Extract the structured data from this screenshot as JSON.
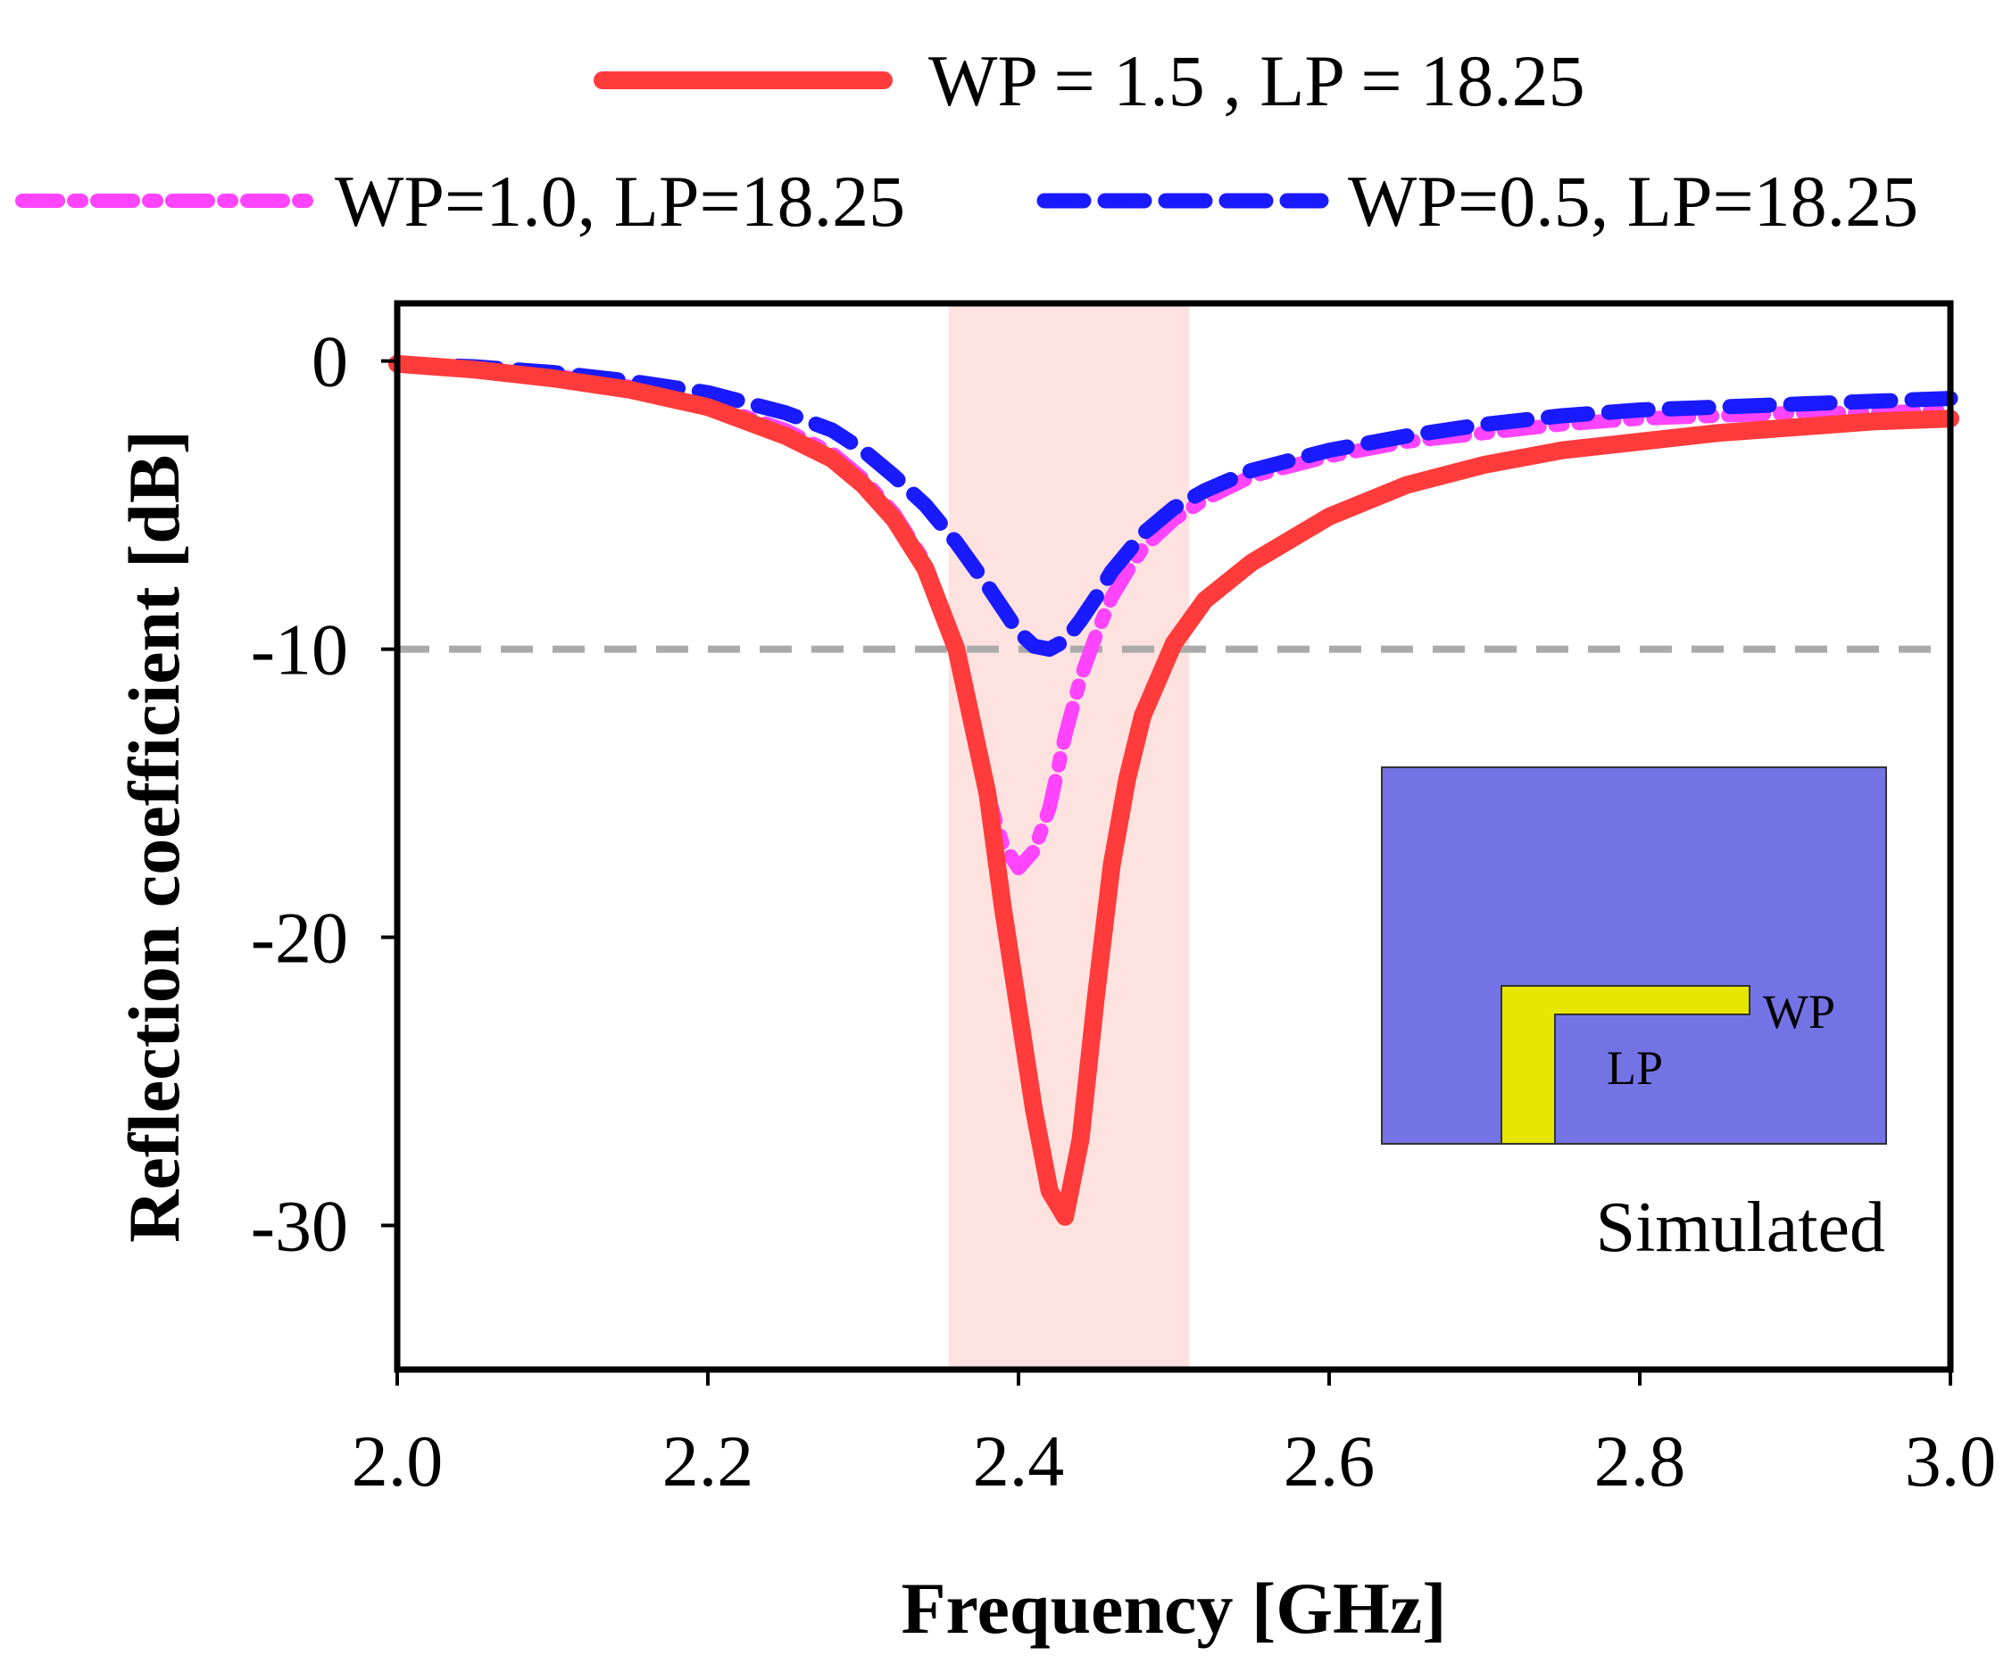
{
  "chart_data": {
    "type": "line",
    "title": "",
    "xlabel": "Frequency [GHz]",
    "ylabel": "Reflection coefficient [dB]",
    "xlim": [
      2.0,
      3.0
    ],
    "ylim": [
      -35,
      2
    ],
    "xticks": [
      2.0,
      2.2,
      2.4,
      2.6,
      2.8,
      3.0
    ],
    "xtick_labels": [
      "2.0",
      "2.2",
      "2.4",
      "2.6",
      "2.8",
      "3.0"
    ],
    "yticks": [
      0,
      -10,
      -20,
      -30
    ],
    "ytick_labels": [
      "0",
      "-10",
      "-20",
      "-30"
    ],
    "grid": false,
    "legend_position": "top",
    "shaded_band": {
      "x_start": 2.355,
      "x_end": 2.51,
      "color": "#fde2e0"
    },
    "reference_line": {
      "y": -10,
      "color": "#aaaaaa"
    },
    "series": [
      {
        "name": "WP = 1.5 , LP = 18.25",
        "color": "#ff3b3b",
        "style": "solid",
        "x": [
          2.0,
          2.05,
          2.1,
          2.15,
          2.2,
          2.25,
          2.28,
          2.3,
          2.32,
          2.34,
          2.36,
          2.38,
          2.39,
          2.4,
          2.41,
          2.42,
          2.43,
          2.44,
          2.45,
          2.46,
          2.47,
          2.48,
          2.5,
          2.52,
          2.55,
          2.6,
          2.65,
          2.7,
          2.75,
          2.8,
          2.85,
          2.9,
          2.95,
          3.0
        ],
        "y": [
          -0.1,
          -0.3,
          -0.6,
          -1.0,
          -1.6,
          -2.6,
          -3.4,
          -4.3,
          -5.5,
          -7.2,
          -10.0,
          -15.0,
          -19.0,
          -22.5,
          -26.0,
          -28.8,
          -29.7,
          -27.0,
          -22.0,
          -17.5,
          -14.5,
          -12.3,
          -9.8,
          -8.3,
          -7.0,
          -5.4,
          -4.3,
          -3.6,
          -3.1,
          -2.8,
          -2.5,
          -2.3,
          -2.1,
          -2.0
        ]
      },
      {
        "name": "WP=1.0, LP=18.25",
        "color": "#ff44ff",
        "style": "dashdot",
        "x": [
          2.0,
          2.05,
          2.1,
          2.15,
          2.2,
          2.25,
          2.28,
          2.3,
          2.32,
          2.34,
          2.36,
          2.37,
          2.38,
          2.39,
          2.4,
          2.41,
          2.42,
          2.43,
          2.44,
          2.45,
          2.46,
          2.47,
          2.48,
          2.5,
          2.52,
          2.55,
          2.6,
          2.65,
          2.7,
          2.75,
          2.8,
          2.85,
          2.9,
          2.95,
          3.0
        ],
        "y": [
          -0.1,
          -0.3,
          -0.5,
          -0.9,
          -1.5,
          -2.4,
          -3.2,
          -4.1,
          -5.3,
          -7.0,
          -10.0,
          -12.5,
          -15.0,
          -16.8,
          -17.6,
          -17.0,
          -15.5,
          -13.0,
          -11.0,
          -9.5,
          -8.2,
          -7.3,
          -6.5,
          -5.5,
          -4.8,
          -4.0,
          -3.3,
          -2.8,
          -2.5,
          -2.2,
          -2.0,
          -1.9,
          -1.8,
          -1.8,
          -1.7
        ]
      },
      {
        "name": "WP=0.5, LP=18.25",
        "color": "#1a1aff",
        "style": "dashed",
        "x": [
          2.0,
          2.05,
          2.1,
          2.15,
          2.2,
          2.25,
          2.28,
          2.3,
          2.32,
          2.34,
          2.36,
          2.38,
          2.39,
          2.4,
          2.41,
          2.42,
          2.43,
          2.44,
          2.45,
          2.46,
          2.48,
          2.5,
          2.52,
          2.55,
          2.6,
          2.65,
          2.7,
          2.75,
          2.8,
          2.85,
          2.9,
          2.95,
          3.0
        ],
        "y": [
          -0.1,
          -0.2,
          -0.4,
          -0.7,
          -1.1,
          -1.8,
          -2.4,
          -3.1,
          -4.0,
          -5.0,
          -6.3,
          -7.8,
          -8.6,
          -9.4,
          -9.9,
          -10.0,
          -9.7,
          -9.0,
          -8.2,
          -7.3,
          -6.0,
          -5.1,
          -4.5,
          -3.8,
          -3.1,
          -2.6,
          -2.2,
          -1.9,
          -1.7,
          -1.6,
          -1.5,
          -1.4,
          -1.3
        ]
      }
    ],
    "inset": {
      "labels": [
        "WP",
        "LP"
      ],
      "substrate_color": "#7373e6",
      "patch_color": "#e6e600"
    },
    "annotation": "Simulated"
  }
}
